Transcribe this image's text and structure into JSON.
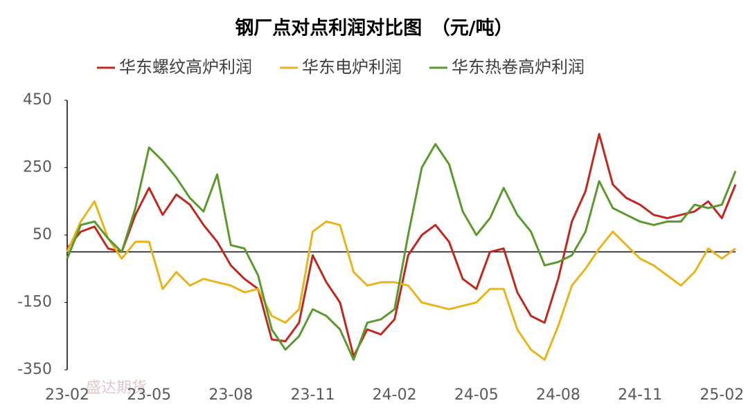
{
  "chart_data": {
    "type": "line",
    "title": "钢厂点对点利润对比图　（元/吨）",
    "watermark": "盛达期货",
    "categories": [
      "23-02",
      null,
      null,
      null,
      null,
      null,
      "23-05",
      null,
      null,
      null,
      null,
      null,
      "23-08",
      null,
      null,
      null,
      null,
      null,
      "23-11",
      null,
      null,
      null,
      null,
      null,
      "24-02",
      null,
      null,
      null,
      null,
      null,
      "24-05",
      null,
      null,
      null,
      null,
      null,
      "24-08",
      null,
      null,
      null,
      null,
      null,
      "24-11",
      null,
      null,
      null,
      null,
      null,
      "25-02",
      null
    ],
    "ylim": [
      -350,
      450
    ],
    "yticks": [
      -350,
      -150,
      50,
      250,
      450
    ],
    "series": [
      {
        "name": "华东螺纹高炉利润",
        "color": "#c0281e",
        "values": [
          10,
          60,
          75,
          10,
          0,
          110,
          190,
          110,
          170,
          140,
          80,
          30,
          -40,
          -80,
          -110,
          -260,
          -265,
          -210,
          -10,
          -90,
          -150,
          -310,
          -230,
          -245,
          -200,
          -10,
          50,
          80,
          30,
          -80,
          -110,
          0,
          10,
          -120,
          -190,
          -210,
          -80,
          90,
          180,
          350,
          200,
          160,
          140,
          110,
          100,
          110,
          120,
          150,
          100,
          200
        ]
      },
      {
        "name": "华东电炉利润",
        "color": "#e8b41a",
        "values": [
          0,
          90,
          150,
          40,
          -20,
          30,
          30,
          -110,
          -60,
          -100,
          -80,
          -90,
          -100,
          -120,
          -110,
          -190,
          -210,
          -170,
          60,
          90,
          80,
          -60,
          -100,
          -90,
          -90,
          -100,
          -150,
          -160,
          -170,
          -160,
          -150,
          -110,
          -110,
          -230,
          -290,
          -320,
          -220,
          -100,
          -50,
          10,
          60,
          20,
          -20,
          -40,
          -70,
          -100,
          -60,
          10,
          -20,
          10
        ]
      },
      {
        "name": "华东热卷高炉利润",
        "color": "#5a9a2c",
        "values": [
          -20,
          80,
          90,
          40,
          0,
          130,
          310,
          270,
          220,
          160,
          120,
          230,
          20,
          10,
          -70,
          -230,
          -290,
          -250,
          -170,
          -190,
          -230,
          -320,
          -210,
          -200,
          -170,
          50,
          250,
          320,
          260,
          120,
          50,
          100,
          190,
          110,
          60,
          -40,
          -30,
          -10,
          60,
          210,
          130,
          110,
          90,
          80,
          90,
          90,
          140,
          130,
          140,
          240
        ]
      }
    ]
  }
}
